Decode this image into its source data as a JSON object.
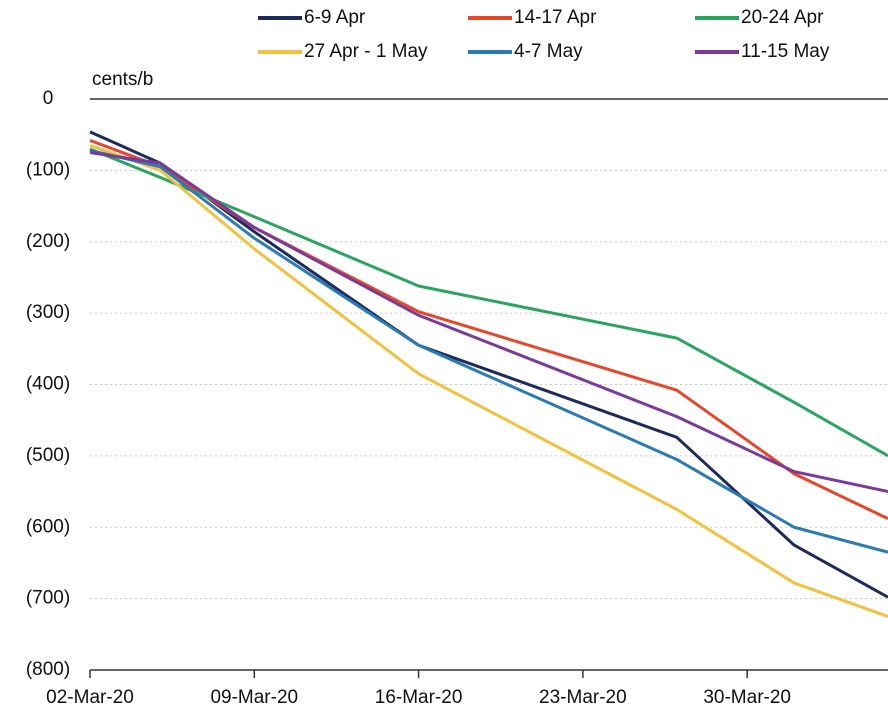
{
  "chart_data": {
    "type": "line",
    "y_label": "cents/b",
    "x": [
      "02-Mar-20",
      "05-Mar-20",
      "09-Mar-20",
      "16-Mar-20",
      "27-Mar-20",
      "01-Apr-20",
      "05-Apr-20"
    ],
    "xlim": [
      "02-Mar-20",
      "05-Apr-20"
    ],
    "xticks": [
      "02-Mar-20",
      "09-Mar-20",
      "16-Mar-20",
      "23-Mar-20",
      "30-Mar-20"
    ],
    "ylim": [
      -800,
      0
    ],
    "yticks": [
      0,
      {
        "value": -100,
        "label": "(100)"
      },
      {
        "value": -200,
        "label": "(200)"
      },
      {
        "value": -300,
        "label": "(300)"
      },
      {
        "value": -400,
        "label": "(400)"
      },
      {
        "value": -500,
        "label": "(500)"
      },
      {
        "value": -600,
        "label": "(600)"
      },
      {
        "value": -700,
        "label": "(700)"
      },
      {
        "value": -800,
        "label": "(800)"
      }
    ],
    "grid": true,
    "legend": "top",
    "series": [
      {
        "name": "6-9 Apr",
        "color": "#1f2a5c",
        "values": [
          -46,
          -90,
          -186,
          -345,
          -474,
          -625,
          -698
        ]
      },
      {
        "name": "14-17 Apr",
        "color": "#e8462a",
        "values": [
          -58,
          -95,
          -180,
          -298,
          -408,
          -525,
          -588
        ]
      },
      {
        "name": "20-24 Apr",
        "color": "#2aa55f",
        "values": [
          -70,
          -110,
          -165,
          -262,
          -335,
          -425,
          -500
        ]
      },
      {
        "name": "27 Apr - 1 May",
        "color": "#f2c13d",
        "values": [
          -65,
          -100,
          -210,
          -385,
          -575,
          -678,
          -725
        ]
      },
      {
        "name": "4-7 May",
        "color": "#2a7ab5",
        "values": [
          -72,
          -95,
          -195,
          -345,
          -505,
          -600,
          -635
        ]
      },
      {
        "name": "11-15 May",
        "color": "#7a3a9a",
        "values": [
          -75,
          -90,
          -180,
          -303,
          -445,
          -522,
          -550
        ]
      }
    ]
  }
}
